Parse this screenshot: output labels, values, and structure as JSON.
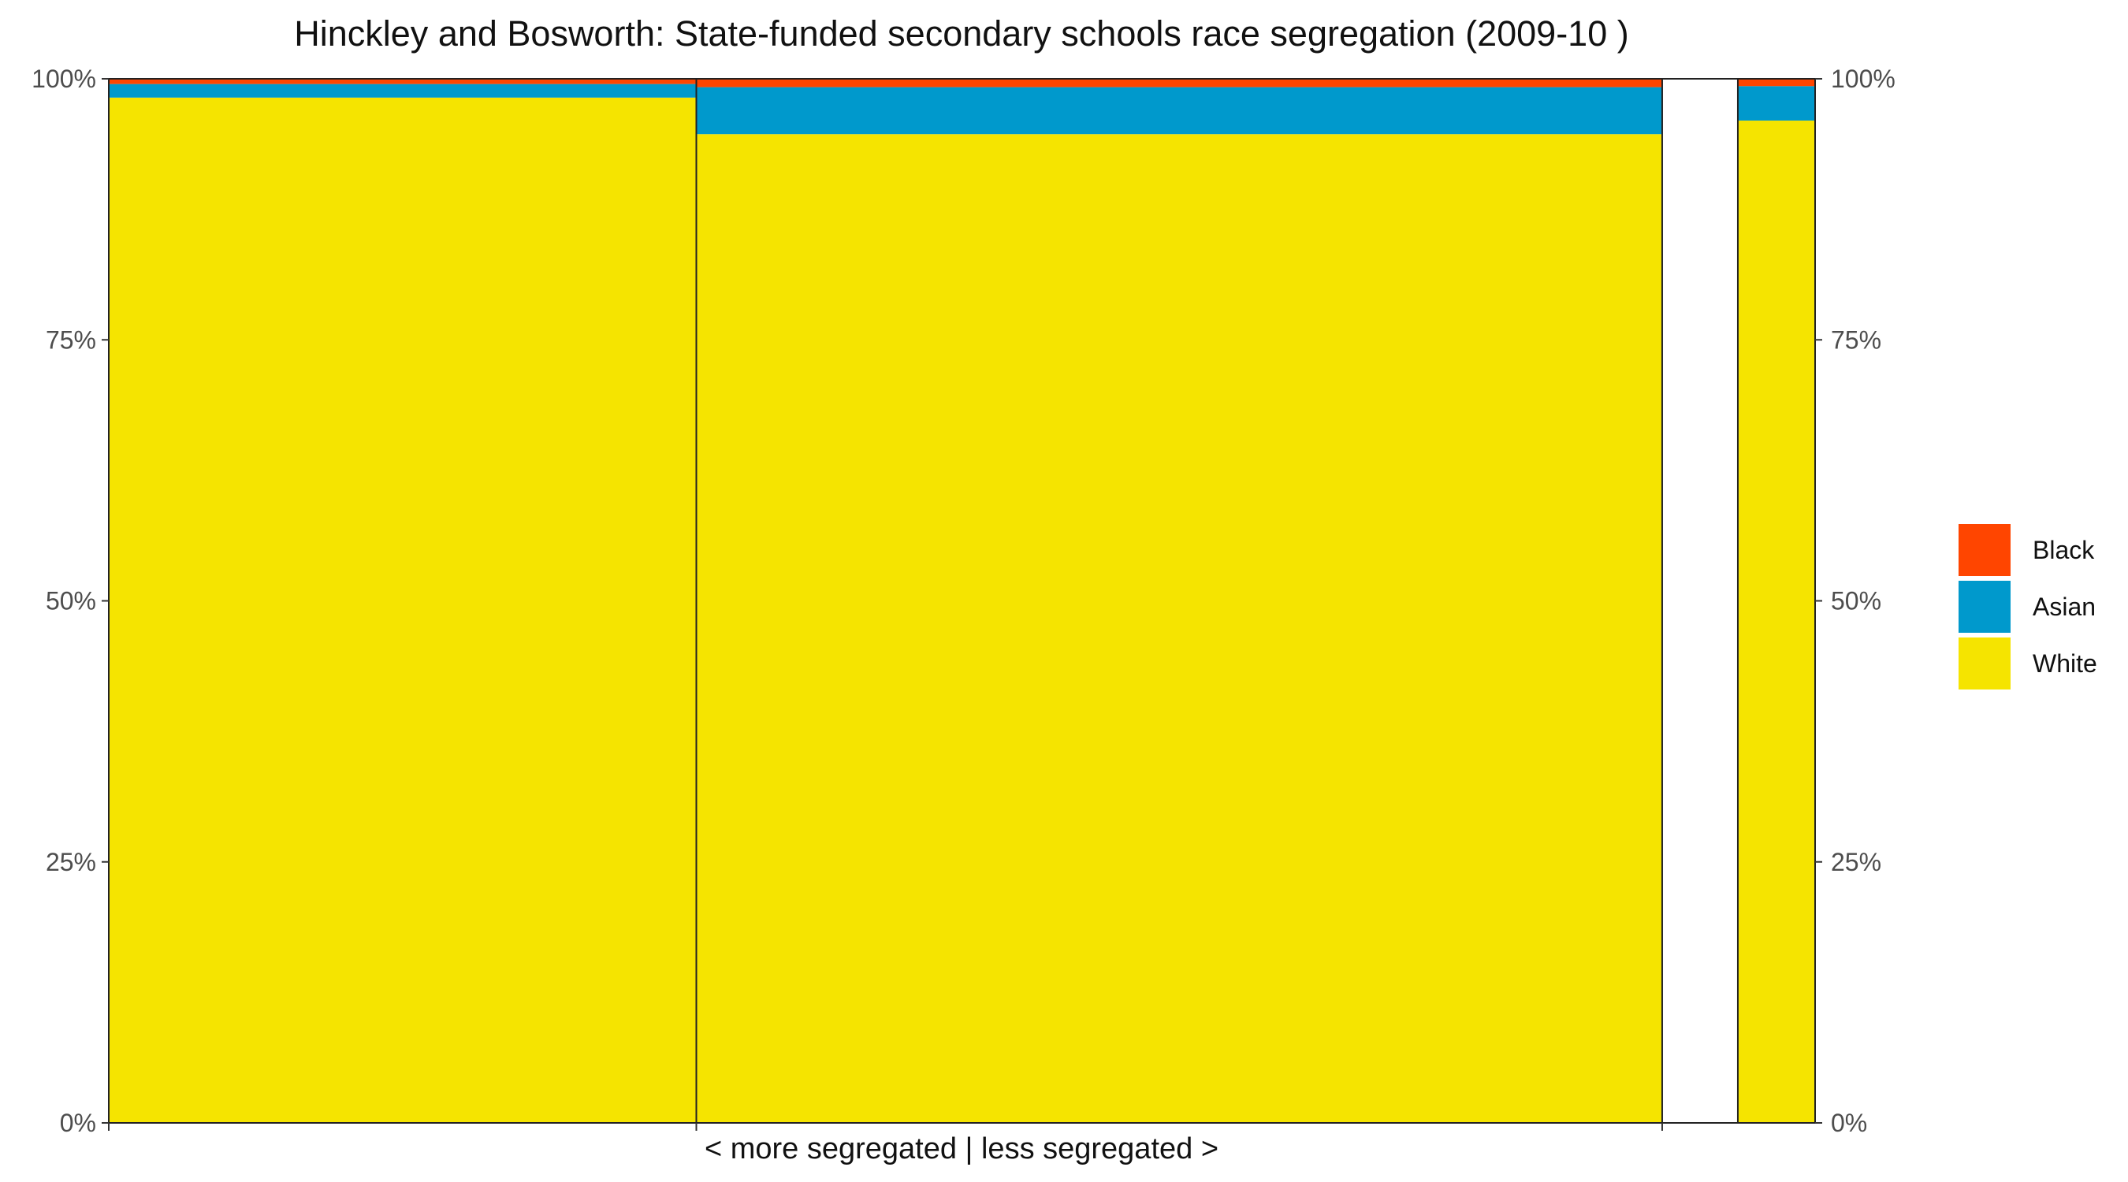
{
  "chart_data": {
    "type": "bar",
    "title": "Hinckley and Bosworth: State-funded secondary schools race segregation (2009-10 )",
    "xlabel": "< more segregated | less segregated >",
    "ylabel": "",
    "ylim": [
      0,
      100
    ],
    "y_ticks": [
      "0%",
      "25%",
      "50%",
      "75%",
      "100%"
    ],
    "y_tick_values": [
      0,
      25,
      50,
      75,
      100
    ],
    "legend_position": "right",
    "grid": false,
    "colors": {
      "Black": "#FF4500",
      "Asian": "#0099CC",
      "White": "#F5E400"
    },
    "stack_order": [
      "White",
      "Asian",
      "Black"
    ],
    "legend": [
      {
        "name": "Black",
        "color": "#FF4500"
      },
      {
        "name": "Asian",
        "color": "#0099CC"
      },
      {
        "name": "White",
        "color": "#F5E400"
      }
    ],
    "groups": [
      {
        "width": 36.5,
        "values": {
          "White": 98.2,
          "Asian": 1.3,
          "Black": 0.5
        }
      },
      {
        "width": 60.0,
        "values": {
          "White": 94.7,
          "Asian": 4.5,
          "Black": 0.8
        }
      },
      {
        "width": 4.7,
        "values": {
          "White": 0,
          "Asian": 0,
          "Black": 0
        }
      },
      {
        "width": 4.8,
        "values": {
          "White": 96.0,
          "Asian": 3.3,
          "Black": 0.7
        }
      }
    ]
  }
}
